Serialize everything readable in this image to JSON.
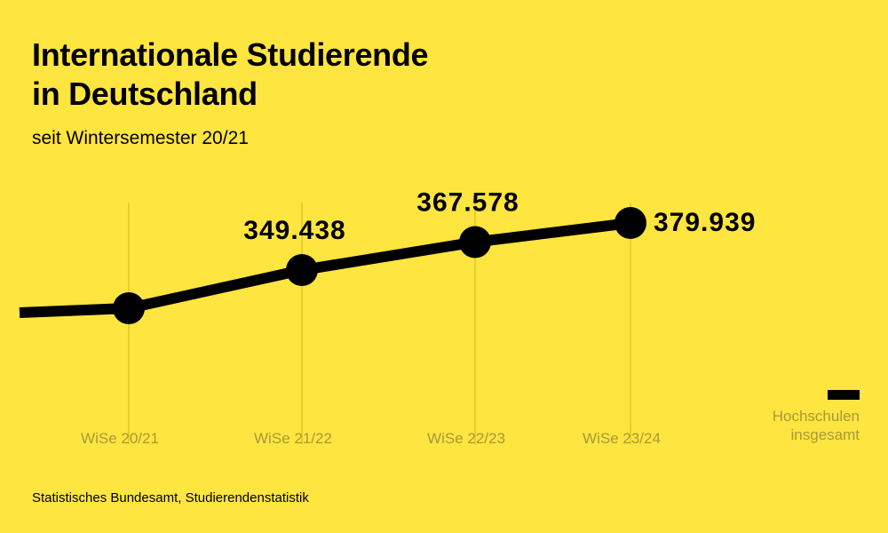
{
  "header": {
    "title_line1": "Internationale Studierende",
    "title_line2": "in Deutschland",
    "subtitle": "seit Wintersemester 20/21"
  },
  "footer": {
    "source": "Statistisches Bundesamt, Studierendenstatistik"
  },
  "legend": {
    "label_line1": "Hochschulen",
    "label_line2": "insgesamt"
  },
  "colors": {
    "background": "#FFE53F",
    "line": "#000000",
    "gridline": "#E6CF2E",
    "tick_label": "#A6993A"
  },
  "chart_data": {
    "type": "line",
    "categories": [
      "WiSe 20/21",
      "WiSe 21/22",
      "WiSe 22/23",
      "WiSe 23/24"
    ],
    "series": [
      {
        "name": "Hochschulen insgesamt",
        "values": [
          324729,
          349438,
          367578,
          379939
        ],
        "labels": [
          "",
          "349.438",
          "367.578",
          "379.939"
        ]
      }
    ],
    "title": "Internationale Studierende in Deutschland",
    "subtitle": "seit Wintersemester 20/21",
    "legend_position": "bottom-right",
    "grid": "vertical"
  }
}
